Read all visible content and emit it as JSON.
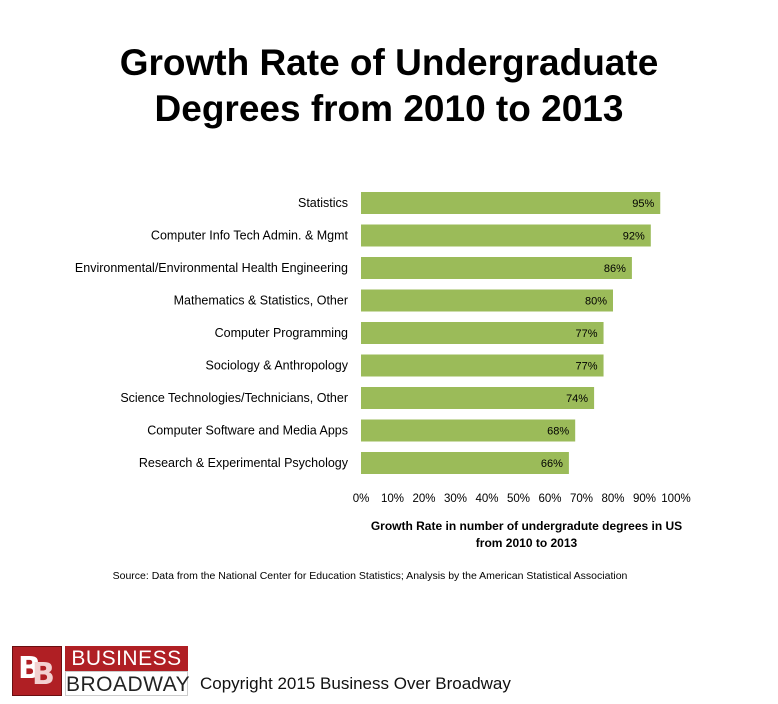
{
  "title_line1": "Growth Rate of Undergraduate",
  "title_line2": "Degrees from 2010 to 2013",
  "source": "Source: Data from the National Center for Education Statistics; Analysis by the American Statistical Association",
  "logo": {
    "top": "BUSINESS",
    "bottom": "BROADWAY",
    "mark": "BB"
  },
  "copyright": "Copyright 2015 Business Over Broadway",
  "chart_data": {
    "type": "bar",
    "orientation": "horizontal",
    "categories": [
      "Statistics",
      "Computer Info Tech Admin. & Mgmt",
      "Environmental/Environmental Health Engineering",
      "Mathematics & Statistics, Other",
      "Computer Programming",
      "Sociology & Anthropology",
      "Science Technologies/Technicians, Other",
      "Computer Software and Media Apps",
      "Research & Experimental Psychology"
    ],
    "values": [
      95,
      92,
      86,
      80,
      77,
      77,
      74,
      68,
      66
    ],
    "data_labels": [
      "95%",
      "92%",
      "86%",
      "80%",
      "77%",
      "77%",
      "74%",
      "68%",
      "66%"
    ],
    "xlim": [
      0,
      100
    ],
    "xticks": [
      "0%",
      "10%",
      "20%",
      "30%",
      "40%",
      "50%",
      "60%",
      "70%",
      "80%",
      "90%",
      "100%"
    ],
    "xlabel_line1": "Growth Rate  in number of undergradute degrees in US",
    "xlabel_line2": "from 2010 to 2013",
    "ylabel": "",
    "bar_color": "#9bbb59",
    "grid": false,
    "legend": "none"
  }
}
